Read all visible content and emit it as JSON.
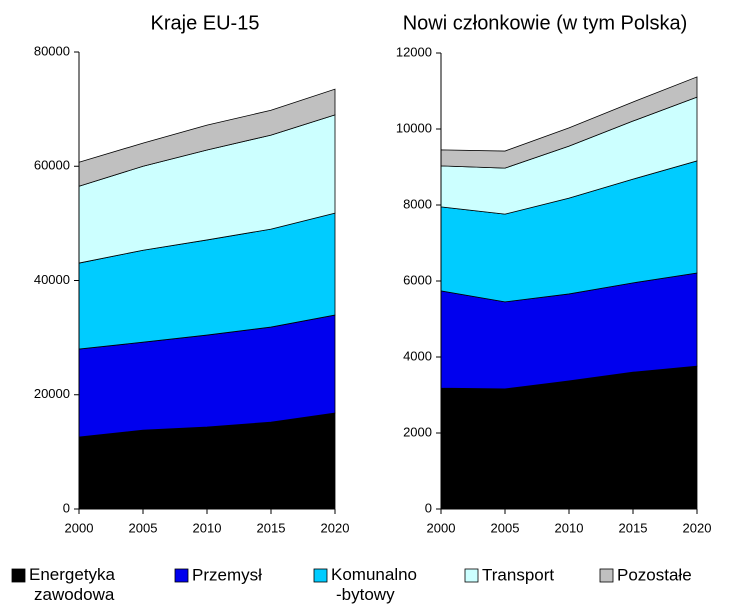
{
  "chart_data": [
    {
      "type": "area",
      "title": "Kraje EU-15",
      "x": [
        2000,
        2005,
        2010,
        2015,
        2020
      ],
      "xlim": [
        2000,
        2020
      ],
      "xticks": [
        2000,
        2005,
        2010,
        2015,
        2020
      ],
      "ylim": [
        0,
        80000
      ],
      "yticks": [
        0,
        20000,
        40000,
        60000,
        80000
      ],
      "stacked": true,
      "series": [
        {
          "name": "Energetyka zawodowa",
          "color": "#000000",
          "values": [
            12600,
            13800,
            14350,
            15200,
            16800
          ]
        },
        {
          "name": "Przemysł",
          "color": "#0000ee",
          "values": [
            15400,
            15400,
            16100,
            16650,
            17150
          ]
        },
        {
          "name": "Komunalno -bytowy",
          "color": "#00ccff",
          "values": [
            15050,
            16100,
            16650,
            17150,
            17850
          ]
        },
        {
          "name": "Transport",
          "color": "#ccffff",
          "values": [
            13450,
            14700,
            15750,
            16450,
            17200
          ]
        },
        {
          "name": "Pozostałe",
          "color": "#c0c0c0",
          "values": [
            4200,
            4050,
            4350,
            4350,
            4500
          ]
        }
      ]
    },
    {
      "type": "area",
      "title": "Nowi członkowie (w tym Polska)",
      "x": [
        2000,
        2005,
        2010,
        2015,
        2020
      ],
      "xlim": [
        2000,
        2020
      ],
      "xticks": [
        2000,
        2005,
        2010,
        2015,
        2020
      ],
      "ylim": [
        0,
        12000
      ],
      "yticks": [
        0,
        2000,
        4000,
        6000,
        8000,
        10000,
        12000
      ],
      "stacked": true,
      "series": [
        {
          "name": "Energetyka zawodowa",
          "color": "#000000",
          "values": [
            3180,
            3160,
            3370,
            3600,
            3760
          ]
        },
        {
          "name": "Przemysł",
          "color": "#0000ee",
          "values": [
            2560,
            2290,
            2290,
            2350,
            2450
          ]
        },
        {
          "name": "Komunalno -bytowy",
          "color": "#00ccff",
          "values": [
            2210,
            2310,
            2520,
            2730,
            2950
          ]
        },
        {
          "name": "Transport",
          "color": "#ccffff",
          "values": [
            1080,
            1210,
            1370,
            1530,
            1680
          ]
        },
        {
          "name": "Pozostałe",
          "color": "#c0c0c0",
          "values": [
            420,
            450,
            480,
            500,
            530
          ]
        }
      ]
    }
  ]
}
